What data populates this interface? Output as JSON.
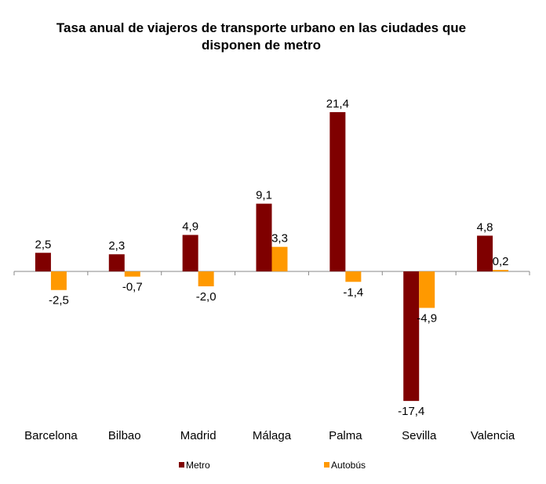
{
  "chart_data": {
    "type": "bar",
    "title_line1": "Tasa anual de viajeros de transporte urbano en las ciudades que",
    "title_line2": "disponen de metro",
    "categories": [
      "Barcelona",
      "Bilbao",
      "Madrid",
      "Málaga",
      "Palma",
      "Sevilla",
      "Valencia"
    ],
    "series": [
      {
        "name": "Metro",
        "color": "#7F0000",
        "values": [
          2.5,
          2.3,
          4.9,
          9.1,
          21.4,
          -17.4,
          4.8
        ],
        "labels": [
          "2,5",
          "2,3",
          "4,9",
          "9,1",
          "21,4",
          "-17,4",
          "4,8"
        ]
      },
      {
        "name": "Autobús",
        "color": "#FF9900",
        "values": [
          -2.5,
          -0.7,
          -2.0,
          3.3,
          -1.4,
          -4.9,
          0.2
        ],
        "labels": [
          "-2,5",
          "-0,7",
          "-2,0",
          "3,3",
          "-1,4",
          "-4,9",
          "0,2"
        ]
      }
    ],
    "xlabel": "",
    "ylabel": "",
    "legend_position": "bottom",
    "grid": false
  }
}
